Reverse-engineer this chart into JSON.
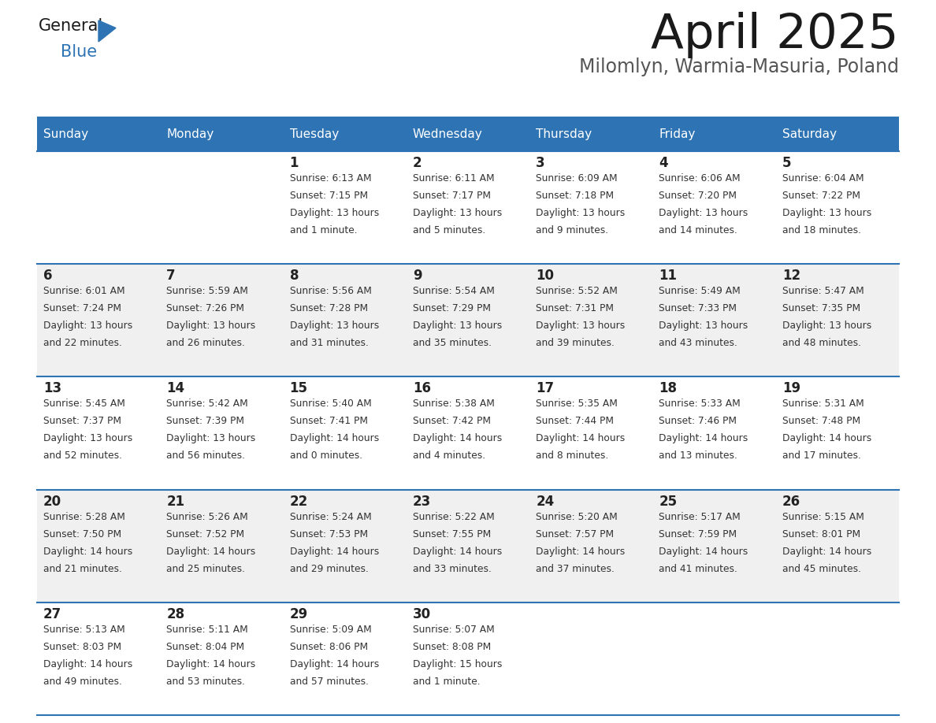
{
  "title": "April 2025",
  "subtitle": "Milomlyn, Warmia-Masuria, Poland",
  "header_bg": "#2E74B5",
  "header_text": "#FFFFFF",
  "row_bg_white": "#FFFFFF",
  "row_bg_gray": "#F0F0F0",
  "cell_text": "#333333",
  "day_num_color": "#222222",
  "separator_color": "#2E74B5",
  "logo_general_color": "#1a1a1a",
  "logo_blue_color": "#2E74B5",
  "day_headers": [
    "Sunday",
    "Monday",
    "Tuesday",
    "Wednesday",
    "Thursday",
    "Friday",
    "Saturday"
  ],
  "weeks": [
    [
      {
        "day": "",
        "sunrise": "",
        "sunset": "",
        "daylight1": "",
        "daylight2": ""
      },
      {
        "day": "",
        "sunrise": "",
        "sunset": "",
        "daylight1": "",
        "daylight2": ""
      },
      {
        "day": "1",
        "sunrise": "Sunrise: 6:13 AM",
        "sunset": "Sunset: 7:15 PM",
        "daylight1": "Daylight: 13 hours",
        "daylight2": "and 1 minute."
      },
      {
        "day": "2",
        "sunrise": "Sunrise: 6:11 AM",
        "sunset": "Sunset: 7:17 PM",
        "daylight1": "Daylight: 13 hours",
        "daylight2": "and 5 minutes."
      },
      {
        "day": "3",
        "sunrise": "Sunrise: 6:09 AM",
        "sunset": "Sunset: 7:18 PM",
        "daylight1": "Daylight: 13 hours",
        "daylight2": "and 9 minutes."
      },
      {
        "day": "4",
        "sunrise": "Sunrise: 6:06 AM",
        "sunset": "Sunset: 7:20 PM",
        "daylight1": "Daylight: 13 hours",
        "daylight2": "and 14 minutes."
      },
      {
        "day": "5",
        "sunrise": "Sunrise: 6:04 AM",
        "sunset": "Sunset: 7:22 PM",
        "daylight1": "Daylight: 13 hours",
        "daylight2": "and 18 minutes."
      }
    ],
    [
      {
        "day": "6",
        "sunrise": "Sunrise: 6:01 AM",
        "sunset": "Sunset: 7:24 PM",
        "daylight1": "Daylight: 13 hours",
        "daylight2": "and 22 minutes."
      },
      {
        "day": "7",
        "sunrise": "Sunrise: 5:59 AM",
        "sunset": "Sunset: 7:26 PM",
        "daylight1": "Daylight: 13 hours",
        "daylight2": "and 26 minutes."
      },
      {
        "day": "8",
        "sunrise": "Sunrise: 5:56 AM",
        "sunset": "Sunset: 7:28 PM",
        "daylight1": "Daylight: 13 hours",
        "daylight2": "and 31 minutes."
      },
      {
        "day": "9",
        "sunrise": "Sunrise: 5:54 AM",
        "sunset": "Sunset: 7:29 PM",
        "daylight1": "Daylight: 13 hours",
        "daylight2": "and 35 minutes."
      },
      {
        "day": "10",
        "sunrise": "Sunrise: 5:52 AM",
        "sunset": "Sunset: 7:31 PM",
        "daylight1": "Daylight: 13 hours",
        "daylight2": "and 39 minutes."
      },
      {
        "day": "11",
        "sunrise": "Sunrise: 5:49 AM",
        "sunset": "Sunset: 7:33 PM",
        "daylight1": "Daylight: 13 hours",
        "daylight2": "and 43 minutes."
      },
      {
        "day": "12",
        "sunrise": "Sunrise: 5:47 AM",
        "sunset": "Sunset: 7:35 PM",
        "daylight1": "Daylight: 13 hours",
        "daylight2": "and 48 minutes."
      }
    ],
    [
      {
        "day": "13",
        "sunrise": "Sunrise: 5:45 AM",
        "sunset": "Sunset: 7:37 PM",
        "daylight1": "Daylight: 13 hours",
        "daylight2": "and 52 minutes."
      },
      {
        "day": "14",
        "sunrise": "Sunrise: 5:42 AM",
        "sunset": "Sunset: 7:39 PM",
        "daylight1": "Daylight: 13 hours",
        "daylight2": "and 56 minutes."
      },
      {
        "day": "15",
        "sunrise": "Sunrise: 5:40 AM",
        "sunset": "Sunset: 7:41 PM",
        "daylight1": "Daylight: 14 hours",
        "daylight2": "and 0 minutes."
      },
      {
        "day": "16",
        "sunrise": "Sunrise: 5:38 AM",
        "sunset": "Sunset: 7:42 PM",
        "daylight1": "Daylight: 14 hours",
        "daylight2": "and 4 minutes."
      },
      {
        "day": "17",
        "sunrise": "Sunrise: 5:35 AM",
        "sunset": "Sunset: 7:44 PM",
        "daylight1": "Daylight: 14 hours",
        "daylight2": "and 8 minutes."
      },
      {
        "day": "18",
        "sunrise": "Sunrise: 5:33 AM",
        "sunset": "Sunset: 7:46 PM",
        "daylight1": "Daylight: 14 hours",
        "daylight2": "and 13 minutes."
      },
      {
        "day": "19",
        "sunrise": "Sunrise: 5:31 AM",
        "sunset": "Sunset: 7:48 PM",
        "daylight1": "Daylight: 14 hours",
        "daylight2": "and 17 minutes."
      }
    ],
    [
      {
        "day": "20",
        "sunrise": "Sunrise: 5:28 AM",
        "sunset": "Sunset: 7:50 PM",
        "daylight1": "Daylight: 14 hours",
        "daylight2": "and 21 minutes."
      },
      {
        "day": "21",
        "sunrise": "Sunrise: 5:26 AM",
        "sunset": "Sunset: 7:52 PM",
        "daylight1": "Daylight: 14 hours",
        "daylight2": "and 25 minutes."
      },
      {
        "day": "22",
        "sunrise": "Sunrise: 5:24 AM",
        "sunset": "Sunset: 7:53 PM",
        "daylight1": "Daylight: 14 hours",
        "daylight2": "and 29 minutes."
      },
      {
        "day": "23",
        "sunrise": "Sunrise: 5:22 AM",
        "sunset": "Sunset: 7:55 PM",
        "daylight1": "Daylight: 14 hours",
        "daylight2": "and 33 minutes."
      },
      {
        "day": "24",
        "sunrise": "Sunrise: 5:20 AM",
        "sunset": "Sunset: 7:57 PM",
        "daylight1": "Daylight: 14 hours",
        "daylight2": "and 37 minutes."
      },
      {
        "day": "25",
        "sunrise": "Sunrise: 5:17 AM",
        "sunset": "Sunset: 7:59 PM",
        "daylight1": "Daylight: 14 hours",
        "daylight2": "and 41 minutes."
      },
      {
        "day": "26",
        "sunrise": "Sunrise: 5:15 AM",
        "sunset": "Sunset: 8:01 PM",
        "daylight1": "Daylight: 14 hours",
        "daylight2": "and 45 minutes."
      }
    ],
    [
      {
        "day": "27",
        "sunrise": "Sunrise: 5:13 AM",
        "sunset": "Sunset: 8:03 PM",
        "daylight1": "Daylight: 14 hours",
        "daylight2": "and 49 minutes."
      },
      {
        "day": "28",
        "sunrise": "Sunrise: 5:11 AM",
        "sunset": "Sunset: 8:04 PM",
        "daylight1": "Daylight: 14 hours",
        "daylight2": "and 53 minutes."
      },
      {
        "day": "29",
        "sunrise": "Sunrise: 5:09 AM",
        "sunset": "Sunset: 8:06 PM",
        "daylight1": "Daylight: 14 hours",
        "daylight2": "and 57 minutes."
      },
      {
        "day": "30",
        "sunrise": "Sunrise: 5:07 AM",
        "sunset": "Sunset: 8:08 PM",
        "daylight1": "Daylight: 15 hours",
        "daylight2": "and 1 minute."
      },
      {
        "day": "",
        "sunrise": "",
        "sunset": "",
        "daylight1": "",
        "daylight2": ""
      },
      {
        "day": "",
        "sunrise": "",
        "sunset": "",
        "daylight1": "",
        "daylight2": ""
      },
      {
        "day": "",
        "sunrise": "",
        "sunset": "",
        "daylight1": "",
        "daylight2": ""
      }
    ]
  ]
}
